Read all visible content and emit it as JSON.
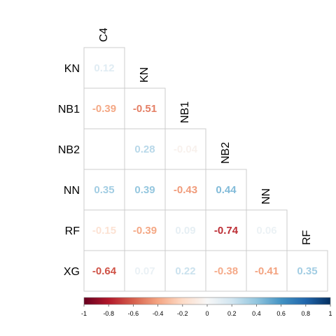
{
  "chart_data": {
    "type": "heatmap",
    "subtype": "correlation-lower-triangle",
    "variables": [
      "C4",
      "KN",
      "NB1",
      "NB2",
      "NN",
      "RF",
      "XG"
    ],
    "row_labels": [
      "KN",
      "NB1",
      "NB2",
      "NN",
      "RF",
      "XG"
    ],
    "column_labels": [
      "C4",
      "KN",
      "NB1",
      "NB2",
      "NN",
      "RF"
    ],
    "cells": [
      {
        "row": "KN",
        "col": "C4",
        "value": 0.12,
        "label": "0.12"
      },
      {
        "row": "NB1",
        "col": "C4",
        "value": -0.39,
        "label": "-0.39"
      },
      {
        "row": "NB1",
        "col": "KN",
        "value": -0.51,
        "label": "-0.51"
      },
      {
        "row": "NB2",
        "col": "C4",
        "value": null,
        "label": ""
      },
      {
        "row": "NB2",
        "col": "KN",
        "value": 0.28,
        "label": "0.28"
      },
      {
        "row": "NB2",
        "col": "NB1",
        "value": -0.04,
        "label": "-0.04"
      },
      {
        "row": "NN",
        "col": "C4",
        "value": 0.35,
        "label": "0.35"
      },
      {
        "row": "NN",
        "col": "KN",
        "value": 0.39,
        "label": "0.39"
      },
      {
        "row": "NN",
        "col": "NB1",
        "value": -0.43,
        "label": "-0.43"
      },
      {
        "row": "NN",
        "col": "NB2",
        "value": 0.44,
        "label": "0.44"
      },
      {
        "row": "RF",
        "col": "C4",
        "value": -0.15,
        "label": "-0.15"
      },
      {
        "row": "RF",
        "col": "KN",
        "value": -0.39,
        "label": "-0.39"
      },
      {
        "row": "RF",
        "col": "NB1",
        "value": 0.09,
        "label": "0.09"
      },
      {
        "row": "RF",
        "col": "NB2",
        "value": -0.74,
        "label": "-0.74"
      },
      {
        "row": "RF",
        "col": "NN",
        "value": 0.06,
        "label": "0.06"
      },
      {
        "row": "XG",
        "col": "C4",
        "value": -0.64,
        "label": "-0.64"
      },
      {
        "row": "XG",
        "col": "KN",
        "value": 0.07,
        "label": "0.07"
      },
      {
        "row": "XG",
        "col": "NB1",
        "value": 0.22,
        "label": "0.22"
      },
      {
        "row": "XG",
        "col": "NB2",
        "value": -0.38,
        "label": "-0.38"
      },
      {
        "row": "XG",
        "col": "NN",
        "value": -0.41,
        "label": "-0.41"
      },
      {
        "row": "XG",
        "col": "RF",
        "value": 0.35,
        "label": "0.35"
      }
    ],
    "colorbar": {
      "range": [
        -1,
        1
      ],
      "ticks": [
        "-1",
        "-0.8",
        "-0.6",
        "-0.4",
        "-0.2",
        "0",
        "0.2",
        "0.4",
        "0.6",
        "0.8",
        "1"
      ],
      "colors": [
        "#67001f",
        "#b2182b",
        "#d6604d",
        "#f4a582",
        "#fddbc7",
        "#f7f7f7",
        "#d1e5f0",
        "#92c5de",
        "#4393c3",
        "#2166ac",
        "#053061"
      ],
      "placement": "bottom"
    },
    "title": "",
    "xlabel": "",
    "ylabel": ""
  }
}
